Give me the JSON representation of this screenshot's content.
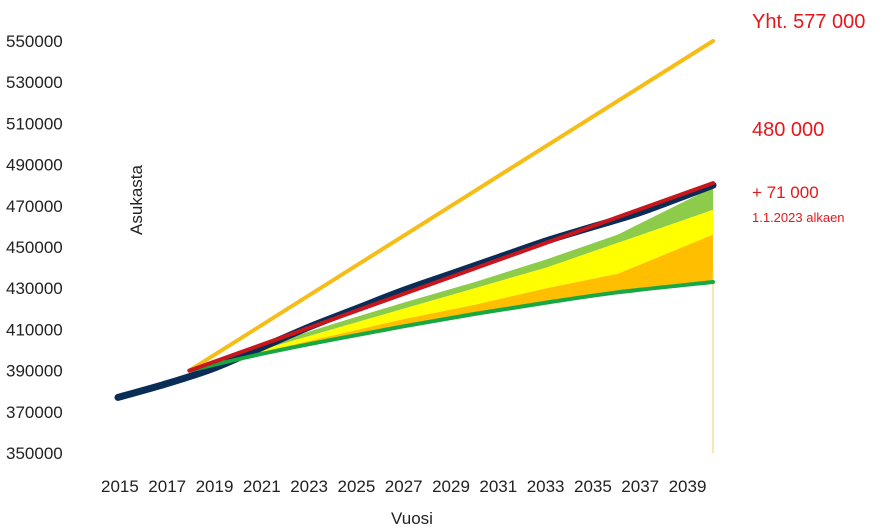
{
  "chart_data": {
    "type": "line",
    "title": "",
    "xlabel": "Vuosi",
    "ylabel": "Asukasta",
    "xlim": [
      2015,
      2040
    ],
    "ylim": [
      350000,
      550000
    ],
    "x_ticks": [
      2015,
      2017,
      2019,
      2021,
      2023,
      2025,
      2027,
      2029,
      2031,
      2033,
      2035,
      2037,
      2039
    ],
    "y_ticks": [
      350000,
      370000,
      390000,
      410000,
      430000,
      450000,
      470000,
      490000,
      510000,
      530000,
      550000
    ],
    "grid": false,
    "legend": "none",
    "series": [
      {
        "color": "#0a2d57",
        "points": [
          [
            2015,
            377000
          ],
          [
            2017,
            383500
          ],
          [
            2019,
            391000
          ],
          [
            2021,
            401000
          ],
          [
            2023,
            411000
          ],
          [
            2025,
            420000
          ],
          [
            2027,
            429000
          ],
          [
            2029,
            437000
          ],
          [
            2031,
            445000
          ],
          [
            2033,
            453000
          ],
          [
            2035,
            460000
          ],
          [
            2037,
            467000
          ],
          [
            2040,
            480000
          ]
        ]
      },
      {
        "color": "#f5bd16",
        "points": [
          [
            2018,
            390000
          ],
          [
            2040,
            550000
          ]
        ]
      },
      {
        "color": "#c8161d",
        "points": [
          [
            2018,
            390000
          ],
          [
            2040,
            481000
          ]
        ]
      },
      {
        "color": "#17a843",
        "points": [
          [
            2018,
            390000
          ],
          [
            2021,
            398000
          ],
          [
            2024,
            405000
          ],
          [
            2027,
            411500
          ],
          [
            2030,
            417500
          ],
          [
            2033,
            423000
          ],
          [
            2036,
            428000
          ],
          [
            2040,
            433000
          ]
        ]
      }
    ],
    "bands": [
      {
        "color": "#8ccc4a",
        "x": [
          2018,
          2021,
          2024,
          2027,
          2030,
          2033,
          2036,
          2040
        ],
        "low": [
          390000,
          400000,
          410000,
          420000,
          430000,
          440000,
          452000,
          468000
        ],
        "high": [
          390000,
          401500,
          412500,
          423000,
          433000,
          444000,
          456000,
          479000
        ]
      },
      {
        "color": "#ffff00",
        "x": [
          2018,
          2021,
          2024,
          2027,
          2030,
          2033,
          2036,
          2040
        ],
        "low": [
          390000,
          399000,
          407000,
          415000,
          422000,
          430000,
          437000,
          456000
        ],
        "high": [
          390000,
          400000,
          410000,
          420000,
          430000,
          440000,
          452000,
          468000
        ]
      },
      {
        "color": "#ffbf00",
        "x": [
          2018,
          2021,
          2024,
          2027,
          2030,
          2033,
          2036,
          2040
        ],
        "low": [
          390000,
          398000,
          405000,
          411500,
          417500,
          423000,
          428000,
          433000
        ],
        "high": [
          390000,
          399000,
          407000,
          415000,
          422000,
          430000,
          437000,
          456000
        ]
      }
    ],
    "vline": {
      "x": 2040,
      "color": "#f5d060"
    },
    "annotations": [
      {
        "text": "Yht. 577 000",
        "kind": "large"
      },
      {
        "text": "480 000",
        "kind": "large"
      },
      {
        "text": "+ 71 000",
        "kind": "medium"
      },
      {
        "text": "1.1.2023 alkaen",
        "kind": "small"
      }
    ]
  }
}
